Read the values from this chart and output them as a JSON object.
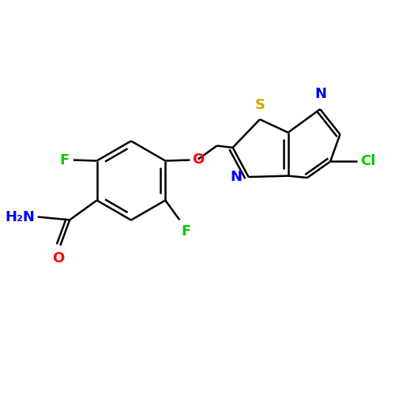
{
  "bg_color": "#ffffff",
  "bond_color": "#000000",
  "atom_colors": {
    "F": "#00cc00",
    "O": "#ff0000",
    "N": "#0000ff",
    "S": "#ccaa00",
    "Cl": "#00cc00",
    "C": "#000000",
    "H": "#000000"
  },
  "figsize": [
    5.0,
    5.0
  ],
  "dpi": 100,
  "lw": 1.8,
  "font_size": 13
}
